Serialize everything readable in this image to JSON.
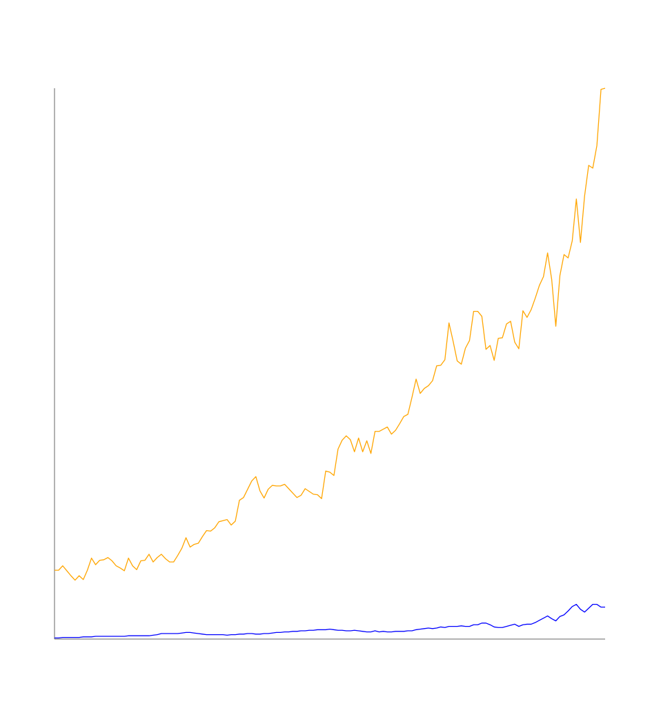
{
  "chart_data": {
    "type": "line",
    "title": "",
    "xlabel": "",
    "ylabel": "",
    "grid": false,
    "legend": "none",
    "xlim": [
      0,
      134
    ],
    "ylim": [
      0,
      100
    ],
    "series": [
      {
        "color": "#FFA500",
        "values": [
          12.5,
          12.5,
          13.3,
          12.4,
          11.5,
          10.7,
          11.5,
          10.8,
          12.5,
          14.7,
          13.5,
          14.3,
          14.4,
          14.8,
          14.2,
          13.3,
          12.9,
          12.4,
          14.7,
          13.3,
          12.6,
          14.2,
          14.3,
          15.4,
          14.0,
          14.8,
          15.4,
          14.6,
          14.0,
          14.0,
          15.2,
          16.5,
          18.4,
          16.7,
          17.2,
          17.4,
          18.6,
          19.7,
          19.6,
          20.2,
          21.3,
          21.5,
          21.7,
          20.7,
          21.4,
          25.2,
          25.7,
          27.2,
          28.7,
          29.5,
          26.9,
          25.6,
          27.2,
          27.9,
          27.8,
          27.8,
          28.1,
          27.3,
          26.5,
          25.7,
          26.1,
          27.3,
          26.8,
          26.3,
          26.2,
          25.5,
          30.5,
          30.3,
          29.7,
          34.5,
          36.1,
          36.9,
          36.2,
          34.0,
          36.5,
          34.0,
          36.0,
          33.7,
          37.7,
          37.7,
          38.1,
          38.5,
          37.2,
          37.9,
          39.1,
          40.4,
          40.8,
          43.9,
          47.2,
          44.6,
          45.5,
          46.0,
          46.9,
          49.6,
          49.7,
          50.7,
          57.4,
          54.1,
          50.5,
          49.9,
          52.8,
          54.2,
          59.5,
          59.5,
          58.6,
          52.6,
          53.3,
          50.6,
          54.6,
          54.7,
          57.2,
          57.7,
          53.9,
          52.7,
          59.6,
          58.4,
          59.8,
          61.9,
          64.2,
          65.8,
          70.1,
          65.3,
          56.8,
          66.0,
          69.8,
          69.2,
          72.3,
          79.9,
          72.0,
          80.4,
          86.0,
          85.5,
          89.6,
          99.8,
          100.0
        ]
      },
      {
        "color": "#0000FF",
        "values": [
          0.2,
          0.2,
          0.3,
          0.3,
          0.3,
          0.3,
          0.3,
          0.4,
          0.4,
          0.4,
          0.5,
          0.5,
          0.5,
          0.5,
          0.5,
          0.5,
          0.5,
          0.5,
          0.6,
          0.6,
          0.6,
          0.6,
          0.6,
          0.6,
          0.7,
          0.8,
          1.0,
          1.0,
          1.0,
          1.0,
          1.0,
          1.1,
          1.2,
          1.2,
          1.1,
          1.0,
          0.9,
          0.8,
          0.8,
          0.8,
          0.8,
          0.8,
          0.7,
          0.8,
          0.8,
          0.9,
          0.9,
          1.0,
          1.0,
          0.9,
          0.9,
          1.0,
          1.0,
          1.1,
          1.2,
          1.2,
          1.3,
          1.3,
          1.4,
          1.4,
          1.5,
          1.5,
          1.6,
          1.6,
          1.7,
          1.7,
          1.7,
          1.8,
          1.7,
          1.6,
          1.6,
          1.5,
          1.5,
          1.6,
          1.5,
          1.4,
          1.3,
          1.3,
          1.5,
          1.3,
          1.4,
          1.3,
          1.3,
          1.4,
          1.4,
          1.4,
          1.5,
          1.5,
          1.7,
          1.8,
          1.9,
          2.0,
          1.9,
          2.0,
          2.2,
          2.1,
          2.3,
          2.3,
          2.3,
          2.4,
          2.3,
          2.3,
          2.6,
          2.6,
          2.9,
          2.9,
          2.6,
          2.2,
          2.1,
          2.1,
          2.3,
          2.5,
          2.7,
          2.3,
          2.6,
          2.7,
          2.7,
          3.0,
          3.4,
          3.8,
          4.2,
          3.7,
          3.3,
          4.1,
          4.4,
          5.1,
          5.9,
          6.3,
          5.4,
          4.9,
          5.6,
          6.3,
          6.3,
          5.8,
          5.8
        ]
      }
    ]
  }
}
